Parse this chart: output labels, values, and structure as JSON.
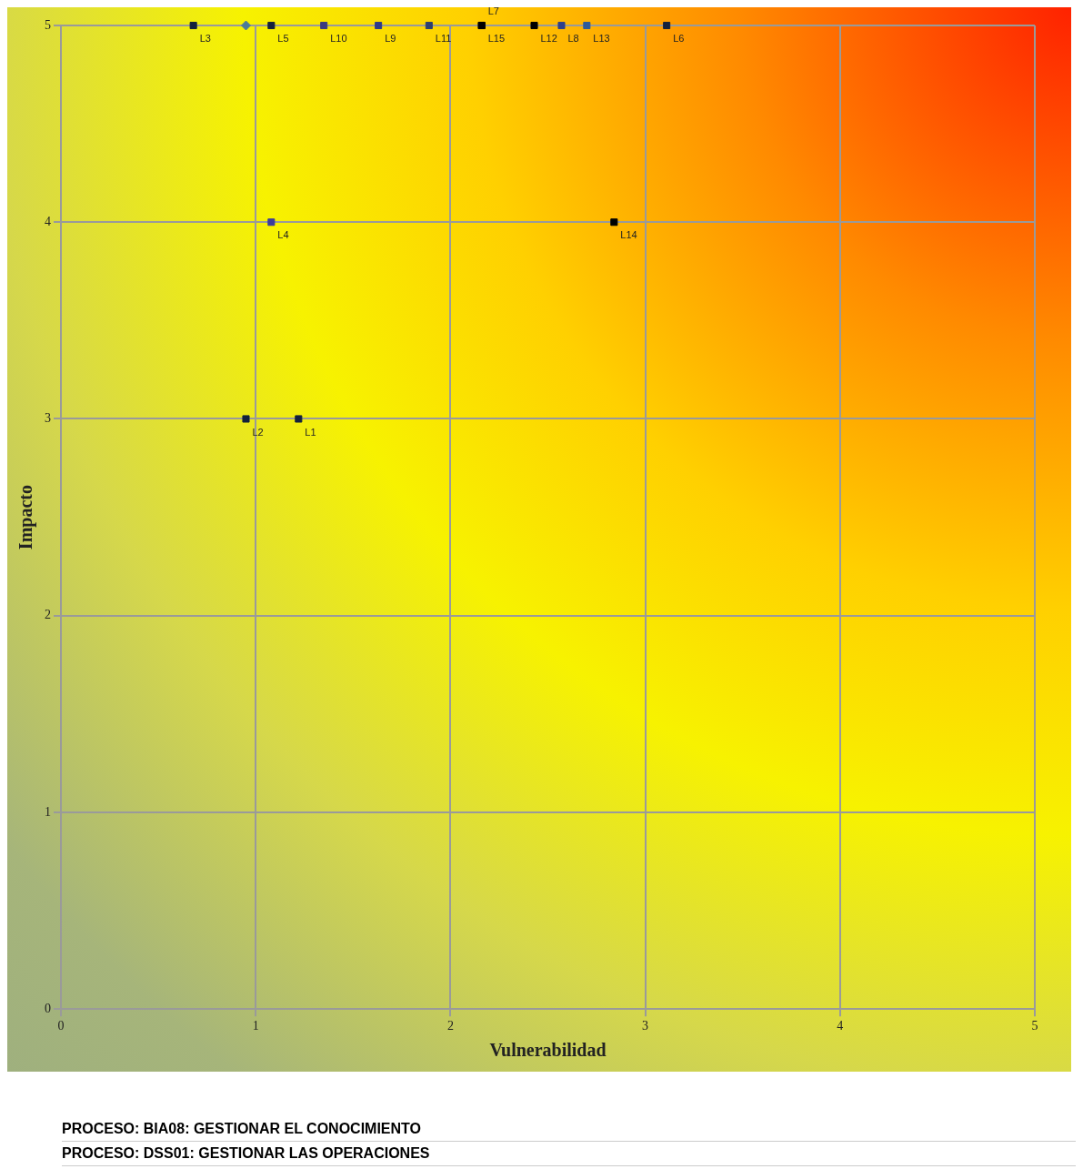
{
  "chart_data": {
    "type": "scatter",
    "xlabel": "Vulnerabilidad",
    "ylabel": "Impacto",
    "xlim": [
      0,
      5
    ],
    "ylim": [
      0,
      5
    ],
    "xticks": [
      0,
      1,
      2,
      3,
      4,
      5
    ],
    "yticks": [
      0,
      1,
      2,
      3,
      4,
      5
    ],
    "grid": true,
    "legend": false,
    "series": [
      {
        "marker": "square",
        "x": [
          0.68,
          1.08,
          1.35,
          1.63,
          1.89,
          2.16,
          2.16,
          2.43,
          2.57,
          2.7,
          3.11,
          1.08,
          2.84,
          0.95,
          1.22
        ],
        "values": [
          5,
          5,
          5,
          5,
          5,
          5,
          5,
          5,
          5,
          5,
          5,
          4,
          4,
          3,
          3
        ],
        "colors": [
          "#14213d",
          "#14213d",
          "#3b3b80",
          "#2e3a8a",
          "#2e3f70",
          "#000000",
          "#000000",
          "#000000",
          "#2e3f8a",
          "#2e5a9a",
          "#14213d",
          "#3b3b9a",
          "#000000",
          "#14213d",
          "#14213d"
        ]
      },
      {
        "marker": "diamond",
        "x": [
          0.95
        ],
        "values": [
          5
        ],
        "color": "#4a7a9a"
      }
    ],
    "annotations": [
      {
        "text": "L3",
        "x": 0.68,
        "y": 5
      },
      {
        "text": "L5",
        "x": 1.08,
        "y": 5
      },
      {
        "text": "L10",
        "x": 1.35,
        "y": 5
      },
      {
        "text": "L9",
        "x": 1.63,
        "y": 5
      },
      {
        "text": "L11",
        "x": 1.89,
        "y": 5
      },
      {
        "text": "L15",
        "x": 2.16,
        "y": 5
      },
      {
        "text": "L7",
        "x": 2.16,
        "y": 5
      },
      {
        "text": "L12",
        "x": 2.43,
        "y": 5
      },
      {
        "text": "L8",
        "x": 2.57,
        "y": 5
      },
      {
        "text": "L13",
        "x": 2.7,
        "y": 5
      },
      {
        "text": "L6",
        "x": 3.11,
        "y": 5
      },
      {
        "text": "L4",
        "x": 1.08,
        "y": 4
      },
      {
        "text": "L14",
        "x": 2.84,
        "y": 4
      },
      {
        "text": "L2",
        "x": 0.95,
        "y": 3
      },
      {
        "text": "L1",
        "x": 1.22,
        "y": 3
      },
      "PROCESO: BIA08: GESTIONAR EL CONOCIMIENTO",
      "PROCESO: DSS01: GESTIONAR LAS OPERACIONES"
    ]
  }
}
